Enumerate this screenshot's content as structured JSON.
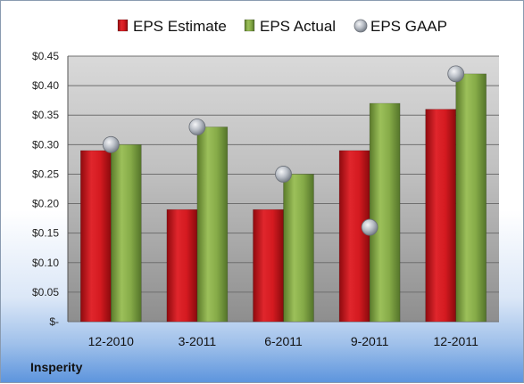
{
  "chart_data": {
    "type": "bar",
    "categories": [
      "12-2010",
      "3-2011",
      "6-2011",
      "9-2011",
      "12-2011"
    ],
    "series": [
      {
        "name": "EPS Estimate",
        "kind": "bar",
        "values": [
          0.29,
          0.19,
          0.19,
          0.29,
          0.36
        ],
        "color": "#c8141b"
      },
      {
        "name": "EPS Actual",
        "kind": "bar",
        "values": [
          0.3,
          0.33,
          0.25,
          0.37,
          0.42
        ],
        "color": "#7fa343"
      },
      {
        "name": "EPS GAAP",
        "kind": "marker",
        "values": [
          0.3,
          0.33,
          0.25,
          0.16,
          0.42
        ],
        "color": "#a8aeb6"
      }
    ],
    "yticks": [
      {
        "value": 0.45,
        "label": "$0.45"
      },
      {
        "value": 0.4,
        "label": "$0.40"
      },
      {
        "value": 0.35,
        "label": "$0.35"
      },
      {
        "value": 0.3,
        "label": "$0.30"
      },
      {
        "value": 0.25,
        "label": "$0.25"
      },
      {
        "value": 0.2,
        "label": "$0.20"
      },
      {
        "value": 0.15,
        "label": "$0.15"
      },
      {
        "value": 0.1,
        "label": "$0.10"
      },
      {
        "value": 0.05,
        "label": "$0.05"
      },
      {
        "value": 0,
        "label": "$-"
      }
    ],
    "ylim": [
      0,
      0.45
    ],
    "grid": true,
    "legend_position": "top"
  },
  "footer": {
    "company": "Insperity"
  }
}
